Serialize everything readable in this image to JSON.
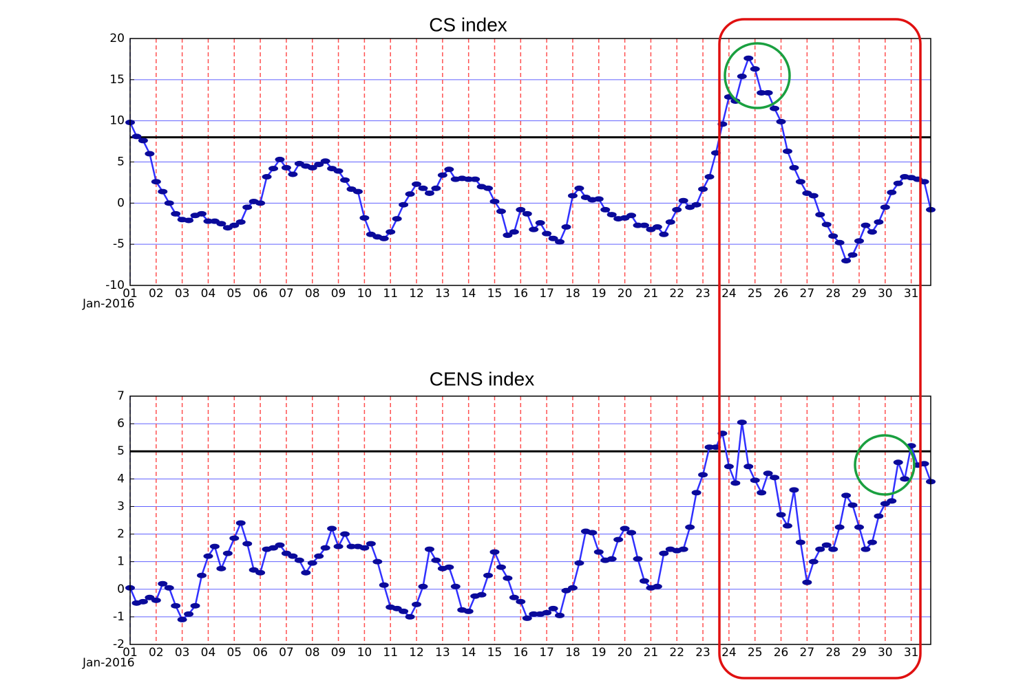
{
  "chart_data": [
    {
      "type": "line",
      "title": "CS index",
      "x_date_label": "Jan-2016",
      "xlim": [
        1,
        31.75
      ],
      "ylim": [
        -10,
        20
      ],
      "yticks": [
        -10,
        -5,
        0,
        5,
        10,
        15,
        20
      ],
      "xticks": [
        {
          "value": 1,
          "label": "01"
        },
        {
          "value": 2,
          "label": "02"
        },
        {
          "value": 3,
          "label": "03"
        },
        {
          "value": 4,
          "label": "04"
        },
        {
          "value": 5,
          "label": "05"
        },
        {
          "value": 6,
          "label": "06"
        },
        {
          "value": 7,
          "label": "07"
        },
        {
          "value": 8,
          "label": "08"
        },
        {
          "value": 9,
          "label": "09"
        },
        {
          "value": 10,
          "label": "10"
        },
        {
          "value": 11,
          "label": "11"
        },
        {
          "value": 12,
          "label": "12"
        },
        {
          "value": 13,
          "label": "13"
        },
        {
          "value": 14,
          "label": "14"
        },
        {
          "value": 15,
          "label": "15"
        },
        {
          "value": 16,
          "label": "16"
        },
        {
          "value": 17,
          "label": "17"
        },
        {
          "value": 18,
          "label": "18"
        },
        {
          "value": 19,
          "label": "19"
        },
        {
          "value": 20,
          "label": "20"
        },
        {
          "value": 21,
          "label": "21"
        },
        {
          "value": 22,
          "label": "22"
        },
        {
          "value": 23,
          "label": "23"
        },
        {
          "value": 24,
          "label": "24"
        },
        {
          "value": 25,
          "label": "25"
        },
        {
          "value": 26,
          "label": "26"
        },
        {
          "value": 27,
          "label": "27"
        },
        {
          "value": 28,
          "label": "28"
        },
        {
          "value": 29,
          "label": "29"
        },
        {
          "value": 30,
          "label": "30"
        },
        {
          "value": 31,
          "label": "31"
        }
      ],
      "threshold": 8,
      "grid": true,
      "x": [
        1,
        1.25,
        1.5,
        1.75,
        2,
        2.25,
        2.5,
        2.75,
        3,
        3.25,
        3.5,
        3.75,
        4,
        4.25,
        4.5,
        4.75,
        5,
        5.25,
        5.5,
        5.75,
        6,
        6.25,
        6.5,
        6.75,
        7,
        7.25,
        7.5,
        7.75,
        8,
        8.25,
        8.5,
        8.75,
        9,
        9.25,
        9.5,
        9.75,
        10,
        10.25,
        10.5,
        10.75,
        11,
        11.25,
        11.5,
        11.75,
        12,
        12.25,
        12.5,
        12.75,
        13,
        13.25,
        13.5,
        13.75,
        14,
        14.25,
        14.5,
        14.75,
        15,
        15.25,
        15.5,
        15.75,
        16,
        16.25,
        16.5,
        16.75,
        17,
        17.25,
        17.5,
        17.75,
        18,
        18.25,
        18.5,
        18.75,
        19,
        19.25,
        19.5,
        19.75,
        20,
        20.25,
        20.5,
        20.75,
        21,
        21.25,
        21.5,
        21.75,
        22,
        22.25,
        22.5,
        22.75,
        23,
        23.25,
        23.5,
        23.75,
        24,
        24.25,
        24.5,
        24.75,
        25,
        25.25,
        25.5,
        25.75,
        26,
        26.25,
        26.5,
        26.75,
        27,
        27.25,
        27.5,
        27.75,
        28,
        28.25,
        28.5,
        28.75,
        29,
        29.25,
        29.5,
        29.75,
        30,
        30.25,
        30.5,
        30.75,
        31,
        31.25,
        31.5,
        31.75
      ],
      "series": [
        {
          "color": "#3030ff",
          "marker_color": "#0a0a9a",
          "values": [
            9.8,
            8.1,
            7.6,
            6.0,
            2.6,
            1.4,
            0.0,
            -1.3,
            -2.0,
            -2.1,
            -1.5,
            -1.3,
            -2.2,
            -2.2,
            -2.5,
            -3.0,
            -2.7,
            -2.3,
            -0.5,
            0.2,
            0.0,
            3.2,
            4.2,
            5.3,
            4.3,
            3.5,
            4.8,
            4.5,
            4.3,
            4.7,
            5.1,
            4.2,
            3.9,
            2.8,
            1.7,
            1.4,
            -1.8,
            -3.8,
            -4.1,
            -4.3,
            -3.5,
            -1.9,
            -0.2,
            1.1,
            2.3,
            1.8,
            1.2,
            1.8,
            3.4,
            4.1,
            2.9,
            3.0,
            2.9,
            2.9,
            2.0,
            1.8,
            0.2,
            -1.0,
            -3.9,
            -3.5,
            -0.8,
            -1.3,
            -3.2,
            -2.4,
            -3.7,
            -4.3,
            -4.7,
            -2.9,
            0.9,
            1.8,
            0.7,
            0.4,
            0.5,
            -0.8,
            -1.4,
            -1.9,
            -1.8,
            -1.5,
            -2.7,
            -2.7,
            -3.2,
            -2.9,
            -3.8,
            -2.3,
            -0.8,
            0.3,
            -0.5,
            -0.2,
            1.7,
            3.2,
            6.1,
            9.6,
            12.9,
            12.4,
            15.4,
            17.6,
            16.3,
            13.4,
            13.4,
            11.5,
            9.9,
            6.3,
            4.3,
            2.6,
            1.2,
            0.9,
            -1.4,
            -2.6,
            -4.0,
            -4.8,
            -7.0,
            -6.3,
            -4.6,
            -2.7,
            -3.5,
            -2.3,
            -0.5,
            1.3,
            2.4,
            3.2,
            3.1,
            2.9,
            2.6,
            -0.8
          ]
        }
      ]
    },
    {
      "type": "line",
      "title": "CENS index",
      "x_date_label": "Jan-2016",
      "xlim": [
        1,
        31.75
      ],
      "ylim": [
        -2,
        7
      ],
      "yticks": [
        -2,
        -1,
        0,
        1,
        2,
        3,
        4,
        5,
        6,
        7
      ],
      "xticks": [
        {
          "value": 1,
          "label": "01"
        },
        {
          "value": 2,
          "label": "02"
        },
        {
          "value": 3,
          "label": "03"
        },
        {
          "value": 4,
          "label": "04"
        },
        {
          "value": 5,
          "label": "05"
        },
        {
          "value": 6,
          "label": "06"
        },
        {
          "value": 7,
          "label": "07"
        },
        {
          "value": 8,
          "label": "08"
        },
        {
          "value": 9,
          "label": "09"
        },
        {
          "value": 10,
          "label": "10"
        },
        {
          "value": 11,
          "label": "11"
        },
        {
          "value": 12,
          "label": "12"
        },
        {
          "value": 13,
          "label": "13"
        },
        {
          "value": 14,
          "label": "14"
        },
        {
          "value": 15,
          "label": "15"
        },
        {
          "value": 16,
          "label": "16"
        },
        {
          "value": 17,
          "label": "17"
        },
        {
          "value": 18,
          "label": "18"
        },
        {
          "value": 19,
          "label": "19"
        },
        {
          "value": 20,
          "label": "20"
        },
        {
          "value": 21,
          "label": "21"
        },
        {
          "value": 22,
          "label": "22"
        },
        {
          "value": 23,
          "label": "23"
        },
        {
          "value": 24,
          "label": "24"
        },
        {
          "value": 25,
          "label": "25"
        },
        {
          "value": 26,
          "label": "26"
        },
        {
          "value": 27,
          "label": "27"
        },
        {
          "value": 28,
          "label": "28"
        },
        {
          "value": 29,
          "label": "29"
        },
        {
          "value": 30,
          "label": "30"
        },
        {
          "value": 31,
          "label": "31"
        }
      ],
      "threshold": 5,
      "grid": true,
      "x": [
        1,
        1.25,
        1.5,
        1.75,
        2,
        2.25,
        2.5,
        2.75,
        3,
        3.25,
        3.5,
        3.75,
        4,
        4.25,
        4.5,
        4.75,
        5,
        5.25,
        5.5,
        5.75,
        6,
        6.25,
        6.5,
        6.75,
        7,
        7.25,
        7.5,
        7.75,
        8,
        8.25,
        8.5,
        8.75,
        9,
        9.25,
        9.5,
        9.75,
        10,
        10.25,
        10.5,
        10.75,
        11,
        11.25,
        11.5,
        11.75,
        12,
        12.25,
        12.5,
        12.75,
        13,
        13.25,
        13.5,
        13.75,
        14,
        14.25,
        14.5,
        14.75,
        15,
        15.25,
        15.5,
        15.75,
        16,
        16.25,
        16.5,
        16.75,
        17,
        17.25,
        17.5,
        17.75,
        18,
        18.25,
        18.5,
        18.75,
        19,
        19.25,
        19.5,
        19.75,
        20,
        20.25,
        20.5,
        20.75,
        21,
        21.25,
        21.5,
        21.75,
        22,
        22.25,
        22.5,
        22.75,
        23,
        23.25,
        23.5,
        23.75,
        24,
        24.25,
        24.5,
        24.75,
        25,
        25.25,
        25.5,
        25.75,
        26,
        26.25,
        26.5,
        26.75,
        27,
        27.25,
        27.5,
        27.75,
        28,
        28.25,
        28.5,
        28.75,
        29,
        29.25,
        29.5,
        29.75,
        30,
        30.25,
        30.5,
        30.75,
        31,
        31.25,
        31.5,
        31.75
      ],
      "series": [
        {
          "color": "#3030ff",
          "marker_color": "#0a0a9a",
          "values": [
            0.05,
            -0.5,
            -0.45,
            -0.3,
            -0.4,
            0.2,
            0.05,
            -0.6,
            -1.1,
            -0.9,
            -0.6,
            0.5,
            1.2,
            1.55,
            0.75,
            1.3,
            1.85,
            2.4,
            1.65,
            0.7,
            0.6,
            1.45,
            1.5,
            1.6,
            1.3,
            1.2,
            1.05,
            0.6,
            0.95,
            1.2,
            1.5,
            2.2,
            1.55,
            2.0,
            1.55,
            1.55,
            1.5,
            1.65,
            1.0,
            0.15,
            -0.65,
            -0.7,
            -0.8,
            -1.0,
            -0.55,
            0.1,
            1.45,
            1.05,
            0.75,
            0.8,
            0.1,
            -0.75,
            -0.8,
            -0.25,
            -0.2,
            0.5,
            1.35,
            0.8,
            0.4,
            -0.3,
            -0.45,
            -1.05,
            -0.9,
            -0.9,
            -0.85,
            -0.7,
            -0.95,
            -0.05,
            0.05,
            0.95,
            2.1,
            2.05,
            1.35,
            1.05,
            1.1,
            1.8,
            2.2,
            2.05,
            1.1,
            0.3,
            0.05,
            0.1,
            1.3,
            1.45,
            1.4,
            1.45,
            2.25,
            3.5,
            4.15,
            5.15,
            5.15,
            5.65,
            4.45,
            3.85,
            6.05,
            4.45,
            3.95,
            3.5,
            4.2,
            4.05,
            2.7,
            2.3,
            3.6,
            1.7,
            0.25,
            1.0,
            1.45,
            1.6,
            1.45,
            2.25,
            3.4,
            3.05,
            2.25,
            1.45,
            1.7,
            2.65,
            3.1,
            3.2,
            4.6,
            4.0,
            5.2,
            4.5,
            4.55,
            3.9
          ]
        }
      ]
    }
  ]
}
